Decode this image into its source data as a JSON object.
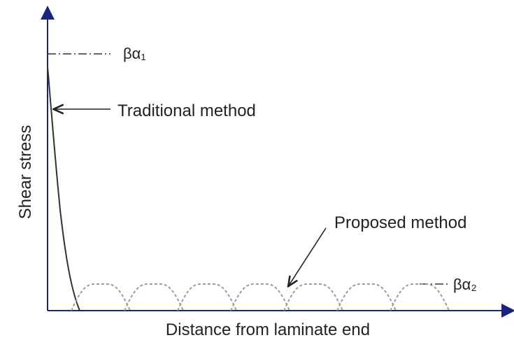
{
  "diagram": {
    "x_axis_label": "Distance from laminate end",
    "y_axis_label": "Shear stress",
    "annotations": {
      "traditional": "Traditional method",
      "proposed": "Proposed method",
      "peak_traditional": "βα₁",
      "peak_proposed": "βα₂"
    },
    "colors": {
      "axis": "#1a237e",
      "traditional_curve": "#333333",
      "proposed_curve": "#9a9a9a",
      "text": "#222222"
    },
    "proposed_curve_humps": 7
  }
}
